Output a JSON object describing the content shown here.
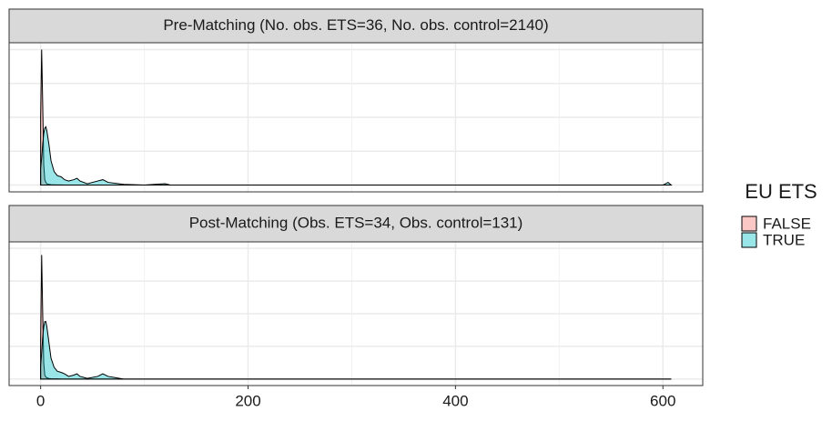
{
  "chart_data": [
    {
      "type": "area",
      "title": "Pre-Matching (No. obs. ETS=36, No. obs. control=2140)",
      "legend_title": "EU ETS",
      "x": [
        0,
        1,
        2,
        3,
        4,
        5,
        6,
        8,
        10,
        13,
        16,
        20,
        23,
        27,
        32,
        35,
        38,
        45,
        55,
        60,
        65,
        80,
        100,
        120,
        125,
        130,
        200,
        400,
        600,
        605,
        608
      ],
      "series": [
        {
          "name": "FALSE",
          "color": "#F8766D",
          "values": [
            0.05,
            0.1,
            0.06,
            0.015,
            0.004,
            0.002,
            0.001,
            0.0005,
            0.0003,
            0.0002,
            0.0001,
            0.0001,
            0,
            0,
            0,
            0,
            0,
            0,
            0,
            0,
            0,
            0,
            0,
            0,
            0,
            0,
            0,
            0,
            0,
            0,
            0
          ]
        },
        {
          "name": "TRUE",
          "color": "#00BFC4",
          "values": [
            0.012,
            0.02,
            0.03,
            0.038,
            0.042,
            0.043,
            0.04,
            0.03,
            0.018,
            0.01,
            0.007,
            0.006,
            0.004,
            0.003,
            0.004,
            0.005,
            0.003,
            0.001,
            0.003,
            0.004,
            0.002,
            0.0005,
            0,
            0.001,
            0,
            0,
            0,
            0,
            0,
            0.002,
            0
          ]
        }
      ],
      "xlim": [
        -30.4,
        638.4
      ],
      "xticks": [
        0,
        200,
        400,
        600
      ],
      "xminor": [
        100,
        300,
        500
      ],
      "ylim": [
        -0.005,
        0.105
      ],
      "yticks": [
        0,
        0.025,
        0.05,
        0.075,
        0.1
      ],
      "grid": true
    },
    {
      "type": "area",
      "title": "Post-Matching (Obs. ETS=34, Obs. control=131)",
      "x": [
        0,
        1,
        2,
        3,
        4,
        5,
        6,
        8,
        10,
        13,
        16,
        20,
        23,
        27,
        32,
        35,
        38,
        45,
        55,
        60,
        65,
        80,
        100,
        120,
        125,
        130,
        200,
        400,
        600,
        605,
        608
      ],
      "series": [
        {
          "name": "FALSE",
          "color": "#F8766D",
          "values": [
            0.03,
            0.095,
            0.05,
            0.012,
            0.003,
            0.0015,
            0.001,
            0.0004,
            0.0002,
            0.0001,
            0.0001,
            0,
            0,
            0,
            0,
            0,
            0,
            0,
            0,
            0,
            0,
            0,
            0,
            0,
            0,
            0,
            0,
            0,
            0,
            0,
            0
          ]
        },
        {
          "name": "TRUE",
          "color": "#00BFC4",
          "values": [
            0.01,
            0.02,
            0.032,
            0.04,
            0.044,
            0.044,
            0.04,
            0.028,
            0.016,
            0.009,
            0.006,
            0.005,
            0.004,
            0.002,
            0.003,
            0.004,
            0.002,
            0.0005,
            0.002,
            0.004,
            0.002,
            0,
            0,
            0,
            0,
            0,
            0,
            0,
            0,
            0,
            0
          ]
        }
      ],
      "xlim": [
        -30.4,
        638.4
      ],
      "xticks": [
        0,
        200,
        400,
        600
      ],
      "xminor": [
        100,
        300,
        500
      ],
      "ylim": [
        -0.005,
        0.105
      ],
      "yticks": [
        0,
        0.025,
        0.05,
        0.075,
        0.1
      ],
      "grid": true
    }
  ]
}
